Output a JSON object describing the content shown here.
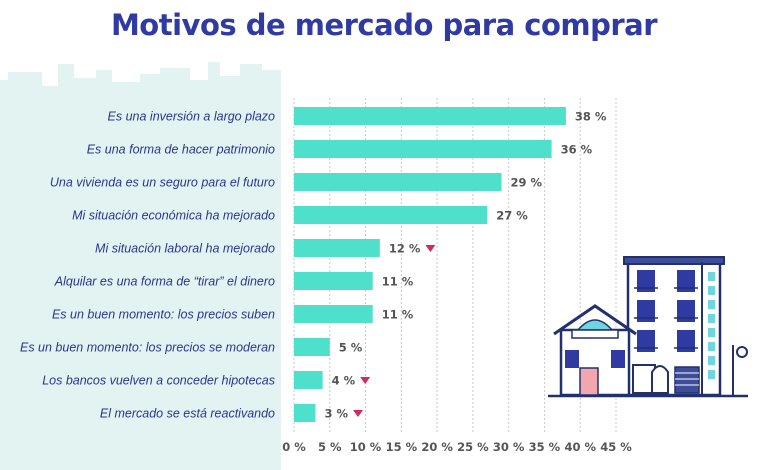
{
  "chart_data": {
    "type": "bar",
    "orientation": "horizontal",
    "title": "Motivos de mercado para comprar",
    "categories": [
      "Es una inversión a largo plazo",
      "Es una forma de hacer patrimonio",
      "Una vivienda es un seguro para el futuro",
      "Mi situación económica ha mejorado",
      "Mi situación laboral ha mejorado",
      "Alquilar es una forma de “tirar” el dinero",
      "Es un buen momento: los precios suben",
      "Es un buen momento: los precios se moderan",
      "Los bancos vuelven a conceder hipotecas",
      "El mercado se está reactivando"
    ],
    "values": [
      38,
      36,
      29,
      27,
      12,
      11,
      11,
      5,
      4,
      3
    ],
    "value_labels": [
      "38 %",
      "36 %",
      "29 %",
      "27  %",
      "12 %",
      "11 %",
      "11 %",
      "5 %",
      "4 %",
      "3 %"
    ],
    "decrease_marker": [
      false,
      false,
      false,
      false,
      true,
      false,
      false,
      false,
      true,
      true
    ],
    "x_ticks": [
      "0 %",
      "5 %",
      "10 %",
      "15 %",
      "20 %",
      "25 %",
      "30 %",
      "35 %",
      "40 %",
      "45 %"
    ],
    "xlim": [
      0,
      45
    ],
    "grid": true,
    "colors": {
      "bar": "#4fe0cc",
      "title": "#2f3aa3",
      "category_text": "#2b3590",
      "value_text": "#555555",
      "decrease_marker": "#d22a5e",
      "background_panel": "#e3f3f2",
      "grid": "#c8c8c8"
    },
    "icons": [
      "city-skyline-background",
      "buildings-illustration-icon"
    ]
  }
}
